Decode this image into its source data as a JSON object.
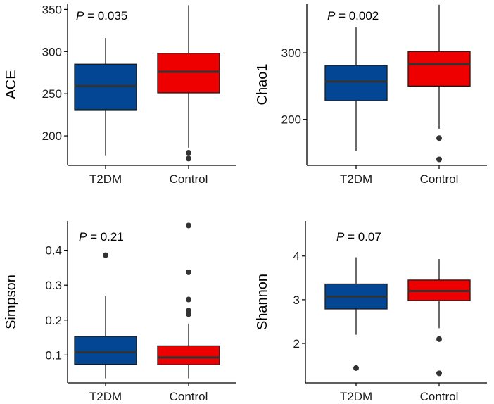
{
  "colors": {
    "t2dm": "#034694",
    "control": "#EE0000"
  },
  "chart_data": [
    {
      "type": "box",
      "id": "ace",
      "ylabel": "ACE",
      "annotation": {
        "italic": "P",
        "rest": " = 0.035"
      },
      "ylim": [
        165,
        357
      ],
      "yticks": [
        200,
        250,
        300,
        350
      ],
      "categories": [
        "T2DM",
        "Control"
      ],
      "boxes": [
        {
          "name": "T2DM",
          "whisker_low": 177,
          "q1": 231,
          "median": 259,
          "q3": 285,
          "whisker_high": 316,
          "outliers": []
        },
        {
          "name": "Control",
          "whisker_low": 186,
          "q1": 251,
          "median": 276,
          "q3": 298,
          "whisker_high": 355,
          "outliers": [
            180,
            173
          ]
        }
      ]
    },
    {
      "type": "box",
      "id": "chao1",
      "ylabel": "Chao1",
      "annotation": {
        "italic": "P",
        "rest": " = 0.002"
      },
      "ylim": [
        131,
        374
      ],
      "yticks": [
        200,
        300
      ],
      "categories": [
        "T2DM",
        "Control"
      ],
      "boxes": [
        {
          "name": "T2DM",
          "whisker_low": 153,
          "q1": 228,
          "median": 257,
          "q3": 281,
          "whisker_high": 338,
          "outliers": []
        },
        {
          "name": "Control",
          "whisker_low": 186,
          "q1": 250,
          "median": 283,
          "q3": 302,
          "whisker_high": 372,
          "outliers": [
            172,
            140
          ]
        }
      ]
    },
    {
      "type": "box",
      "id": "simpson",
      "ylabel": "Simpson",
      "annotation": {
        "italic": "P",
        "rest": " = 0.21"
      },
      "ylim": [
        0.02,
        0.484
      ],
      "yticks": [
        0.1,
        0.2,
        0.3,
        0.4
      ],
      "categories": [
        "T2DM",
        "Control"
      ],
      "boxes": [
        {
          "name": "T2DM",
          "whisker_low": 0.033,
          "q1": 0.073,
          "median": 0.108,
          "q3": 0.153,
          "whisker_high": 0.268,
          "outliers": [
            0.386
          ]
        },
        {
          "name": "Control",
          "whisker_low": 0.033,
          "q1": 0.072,
          "median": 0.093,
          "q3": 0.126,
          "whisker_high": 0.19,
          "outliers": [
            0.471,
            0.337,
            0.259,
            0.227,
            0.217
          ]
        }
      ]
    },
    {
      "type": "box",
      "id": "shannon",
      "ylabel": "Shannon",
      "annotation": {
        "italic": "P",
        "rest": " = 0.07"
      },
      "ylim": [
        1.1,
        4.8
      ],
      "yticks": [
        2,
        3,
        4
      ],
      "categories": [
        "T2DM",
        "Control"
      ],
      "boxes": [
        {
          "name": "T2DM",
          "whisker_low": 2.2,
          "q1": 2.79,
          "median": 3.07,
          "q3": 3.36,
          "whisker_high": 3.97,
          "outliers": [
            1.44
          ]
        },
        {
          "name": "Control",
          "whisker_low": 2.35,
          "q1": 2.98,
          "median": 3.2,
          "q3": 3.45,
          "whisker_high": 3.93,
          "outliers": [
            2.1,
            1.32
          ]
        }
      ]
    }
  ]
}
